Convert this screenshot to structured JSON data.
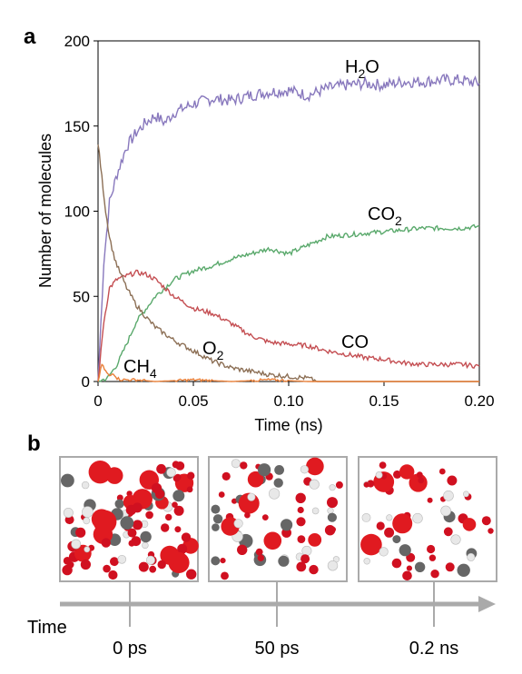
{
  "panel_a_label": "a",
  "panel_b_label": "b",
  "chart_data": {
    "type": "line",
    "xlabel": "Time (ns)",
    "ylabel": "Number of molecules",
    "xlim": [
      0,
      0.2
    ],
    "ylim": [
      0,
      200
    ],
    "xticks": [
      "0",
      "0.05",
      "0.10",
      "0.15",
      "0.20"
    ],
    "yticks": [
      "0",
      "50",
      "100",
      "150",
      "200"
    ],
    "grid": false,
    "legend": "inline labels",
    "series": [
      {
        "name": "H2O",
        "label_main": "H",
        "label_sub": "2",
        "label_tail": "O",
        "color": "#8878bd",
        "x": [
          0,
          0.003,
          0.006,
          0.01,
          0.015,
          0.02,
          0.025,
          0.03,
          0.035,
          0.04,
          0.05,
          0.06,
          0.07,
          0.08,
          0.09,
          0.1,
          0.11,
          0.12,
          0.13,
          0.14,
          0.15,
          0.16,
          0.17,
          0.18,
          0.19,
          0.2
        ],
        "y": [
          0,
          70,
          105,
          122,
          138,
          146,
          152,
          156,
          152,
          158,
          163,
          166,
          165,
          168,
          170,
          171,
          168,
          172,
          174,
          175,
          174,
          176,
          176,
          177,
          177,
          175
        ]
      },
      {
        "name": "CO2",
        "label_main": "CO",
        "label_sub": "2",
        "label_tail": "",
        "color": "#5aa96c",
        "x": [
          0,
          0.005,
          0.01,
          0.015,
          0.02,
          0.03,
          0.04,
          0.05,
          0.06,
          0.07,
          0.08,
          0.09,
          0.1,
          0.11,
          0.12,
          0.13,
          0.14,
          0.15,
          0.16,
          0.17,
          0.18,
          0.19,
          0.2
        ],
        "y": [
          0,
          2,
          10,
          22,
          35,
          50,
          60,
          65,
          68,
          72,
          75,
          78,
          75,
          80,
          85,
          86,
          87,
          88,
          89,
          90,
          90,
          90,
          91
        ]
      },
      {
        "name": "CO",
        "label_main": "CO",
        "label_sub": "",
        "label_tail": "",
        "color": "#c44e52",
        "x": [
          0,
          0.003,
          0.006,
          0.01,
          0.015,
          0.02,
          0.025,
          0.03,
          0.035,
          0.04,
          0.05,
          0.06,
          0.07,
          0.08,
          0.09,
          0.1,
          0.11,
          0.12,
          0.13,
          0.14,
          0.15,
          0.16,
          0.17,
          0.18,
          0.19,
          0.2
        ],
        "y": [
          0,
          35,
          55,
          60,
          62,
          64,
          63,
          60,
          55,
          50,
          43,
          40,
          34,
          27,
          23,
          22,
          21,
          18,
          16,
          14,
          13,
          11,
          10,
          10,
          10,
          9
        ]
      },
      {
        "name": "O2",
        "label_main": "O",
        "label_sub": "2",
        "label_tail": "",
        "color": "#8c6f55",
        "x": [
          0,
          0.002,
          0.004,
          0.006,
          0.008,
          0.01,
          0.015,
          0.02,
          0.025,
          0.03,
          0.04,
          0.05,
          0.06,
          0.07,
          0.08,
          0.09,
          0.1,
          0.11,
          0.115,
          0.12,
          0.14,
          0.16,
          0.18,
          0.2
        ],
        "y": [
          140,
          120,
          100,
          85,
          75,
          68,
          55,
          45,
          38,
          32,
          24,
          18,
          12,
          8,
          6,
          4,
          3,
          2,
          0,
          0,
          0,
          0,
          0,
          0
        ]
      },
      {
        "name": "CH4",
        "label_main": "CH",
        "label_sub": "4",
        "label_tail": "",
        "color": "#e8803a",
        "x": [
          0,
          0.002,
          0.004,
          0.006,
          0.008,
          0.01,
          0.012,
          0.015,
          0.02,
          0.03,
          0.05,
          0.07,
          0.09,
          0.11,
          0.12,
          0.14,
          0.16,
          0.18,
          0.2
        ],
        "y": [
          0,
          10,
          6,
          3,
          5,
          2,
          1,
          1,
          1,
          0,
          1,
          0,
          1,
          0,
          0,
          0,
          0,
          0,
          0
        ]
      }
    ]
  },
  "timeline": {
    "axis_label": "Time",
    "snapshots": [
      {
        "label": "0 ps"
      },
      {
        "label": "50 ps"
      },
      {
        "label": "0.2 ns"
      }
    ]
  }
}
